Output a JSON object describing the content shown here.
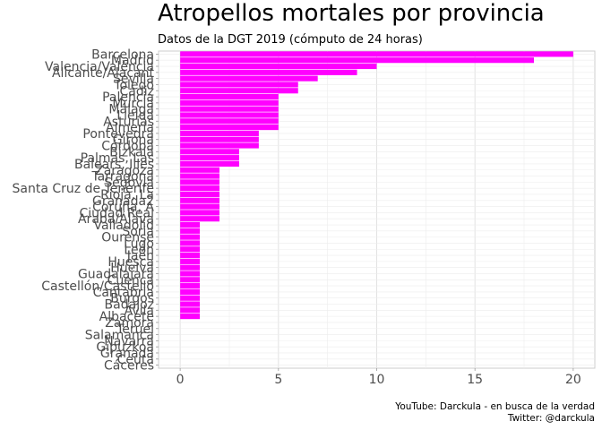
{
  "chart_data": {
    "type": "bar",
    "orientation": "horizontal",
    "title": "Atropellos mortales por provincia",
    "subtitle": "Datos de la DGT 2019 (cómputo de 24 horas)",
    "caption": [
      "YouTube: Darckula - en busca de la verdad",
      "Twitter: @darckula"
    ],
    "xlabel": "",
    "ylabel": "",
    "xlim": [
      0,
      20
    ],
    "x_ticks": [
      0,
      5,
      10,
      15,
      20
    ],
    "bar_color": "#FF00FF",
    "grid": true,
    "categories": [
      "Barcelona",
      "Madrid",
      "Valencia/València",
      "Alicante/Alacant",
      "Sevilla",
      "Toledo",
      "Cádiz",
      "Palencia",
      "Murcia",
      "Málaga",
      "Lleida",
      "Asturias",
      "Almería",
      "Pontevedra",
      "Girona",
      "Córdoba",
      "Bizkaia",
      "Palmas, Las",
      "Balears, Illes",
      "Zaragoza",
      "Tarragona",
      "Segovia",
      "Santa Cruz de Tenerife",
      "Rioja, La",
      "Granada2",
      "Coruña, A",
      "Ciudad Real",
      "Araba/Álava",
      "Valladolid",
      "Soria",
      "Ourense",
      "Lugo",
      "León",
      "Jaén",
      "Huesca",
      "Huelva",
      "Guadalajara",
      "Cuenca",
      "Castellón/Castelló",
      "Cantabria",
      "Burgos",
      "Badajoz",
      "Ávila",
      "Albacete",
      "Zamora",
      "Teruel",
      "Salamanca",
      "Navarra",
      "Gipuzkoa",
      "Granada",
      "Ceuta",
      "Cáceres"
    ],
    "values": [
      20,
      18,
      10,
      9,
      7,
      6,
      6,
      5,
      5,
      5,
      5,
      5,
      5,
      4,
      4,
      4,
      3,
      3,
      3,
      2,
      2,
      2,
      2,
      2,
      2,
      2,
      2,
      2,
      1,
      1,
      1,
      1,
      1,
      1,
      1,
      1,
      1,
      1,
      1,
      1,
      1,
      1,
      1,
      1,
      0,
      0,
      0,
      0,
      0,
      0,
      0,
      0
    ]
  }
}
